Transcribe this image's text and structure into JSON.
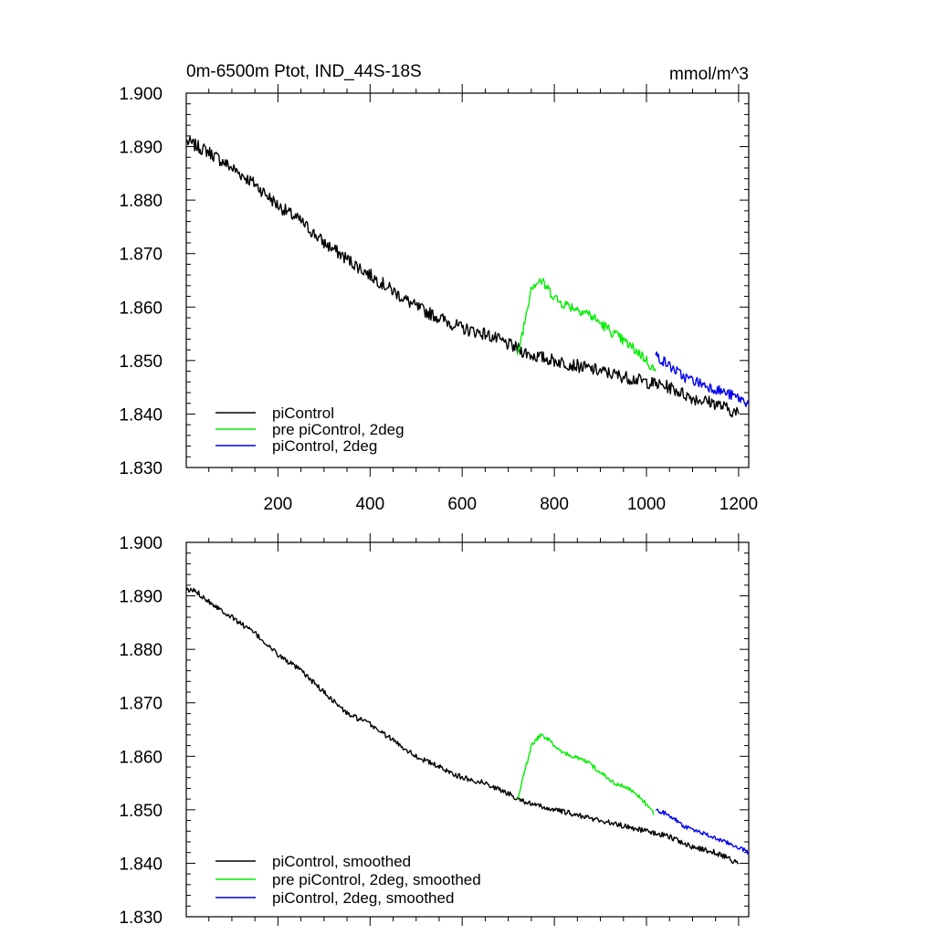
{
  "title": "0m-6500m Ptot, IND_44S-18S",
  "units": "mmol/m^3",
  "colors": {
    "piControl": "#000000",
    "pre_piControl_2deg": "#00ee00",
    "piControl_2deg": "#0000ee"
  },
  "chart_data": [
    {
      "type": "line",
      "panel": "top",
      "xlim": [
        1,
        1222
      ],
      "ylim": [
        1.83,
        1.9
      ],
      "x_ticks": [
        200,
        400,
        600,
        800,
        1000,
        1200
      ],
      "x_tick_labels": [
        "200",
        "400",
        "600",
        "800",
        "1000",
        "1200"
      ],
      "y_ticks": [
        1.83,
        1.84,
        1.85,
        1.86,
        1.87,
        1.88,
        1.89,
        1.9
      ],
      "y_tick_labels": [
        "1.830",
        "1.840",
        "1.850",
        "1.860",
        "1.870",
        "1.880",
        "1.890",
        "1.900"
      ],
      "legend_position": "bottom-left",
      "series": [
        {
          "name": "piControl",
          "color": "#000000",
          "noise": 0.0012,
          "x": [
            1,
            50,
            100,
            150,
            200,
            250,
            300,
            350,
            400,
            450,
            500,
            550,
            600,
            650,
            700,
            750,
            800,
            850,
            900,
            950,
            1000,
            1050,
            1100,
            1150,
            1200
          ],
          "values": [
            1.891,
            1.889,
            1.886,
            1.883,
            1.879,
            1.876,
            1.872,
            1.869,
            1.866,
            1.863,
            1.86,
            1.858,
            1.856,
            1.855,
            1.853,
            1.851,
            1.85,
            1.849,
            1.848,
            1.847,
            1.846,
            1.845,
            1.843,
            1.842,
            1.84
          ]
        },
        {
          "name": "pre piControl, 2deg",
          "color": "#00ee00",
          "noise": 0.001,
          "x": [
            720,
            735,
            750,
            770,
            790,
            810,
            840,
            870,
            900,
            930,
            960,
            990,
            1010,
            1020
          ],
          "values": [
            1.851,
            1.857,
            1.864,
            1.865,
            1.863,
            1.861,
            1.86,
            1.859,
            1.857,
            1.855,
            1.853,
            1.851,
            1.849,
            1.848
          ]
        },
        {
          "name": "piControl, 2deg",
          "color": "#0000ee",
          "noise": 0.001,
          "x": [
            1020,
            1050,
            1080,
            1110,
            1140,
            1170,
            1200,
            1222
          ],
          "values": [
            1.851,
            1.849,
            1.847,
            1.846,
            1.845,
            1.844,
            1.843,
            1.842
          ]
        }
      ],
      "legend": [
        "piControl",
        "pre piControl, 2deg",
        "piControl, 2deg"
      ]
    },
    {
      "type": "line",
      "panel": "bottom",
      "xlim": [
        1,
        1222
      ],
      "ylim": [
        1.83,
        1.9
      ],
      "x_ticks": [
        200,
        400,
        600,
        800,
        1000,
        1200
      ],
      "y_ticks": [
        1.83,
        1.84,
        1.85,
        1.86,
        1.87,
        1.88,
        1.89,
        1.9
      ],
      "y_tick_labels": [
        "1.830",
        "1.840",
        "1.850",
        "1.860",
        "1.870",
        "1.880",
        "1.890",
        "1.900"
      ],
      "legend_position": "bottom-left",
      "series": [
        {
          "name": "piControl, smoothed",
          "color": "#000000",
          "noise": 0.0005,
          "x": [
            1,
            20,
            50,
            100,
            150,
            200,
            250,
            300,
            350,
            400,
            450,
            500,
            550,
            600,
            650,
            700,
            750,
            800,
            850,
            900,
            950,
            1000,
            1050,
            1100,
            1150,
            1200
          ],
          "values": [
            1.891,
            1.891,
            1.889,
            1.886,
            1.883,
            1.879,
            1.876,
            1.872,
            1.868,
            1.866,
            1.863,
            1.86,
            1.858,
            1.856,
            1.855,
            1.853,
            1.851,
            1.85,
            1.849,
            1.848,
            1.847,
            1.846,
            1.845,
            1.843,
            1.842,
            1.84
          ]
        },
        {
          "name": "pre piControl, 2deg, smoothed",
          "color": "#00ee00",
          "noise": 0.0004,
          "x": [
            720,
            735,
            750,
            770,
            790,
            810,
            840,
            870,
            900,
            930,
            960,
            990,
            1010,
            1015
          ],
          "values": [
            1.852,
            1.857,
            1.862,
            1.864,
            1.863,
            1.861,
            1.86,
            1.859,
            1.857,
            1.855,
            1.854,
            1.852,
            1.85,
            1.849
          ]
        },
        {
          "name": "piControl, 2deg, smoothed",
          "color": "#0000ee",
          "noise": 0.0004,
          "x": [
            1020,
            1050,
            1080,
            1110,
            1140,
            1170,
            1200,
            1222
          ],
          "values": [
            1.85,
            1.849,
            1.847,
            1.846,
            1.845,
            1.844,
            1.843,
            1.842
          ]
        }
      ],
      "legend": [
        "piControl, smoothed",
        "pre piControl, 2deg, smoothed",
        "piControl, 2deg, smoothed"
      ]
    }
  ]
}
